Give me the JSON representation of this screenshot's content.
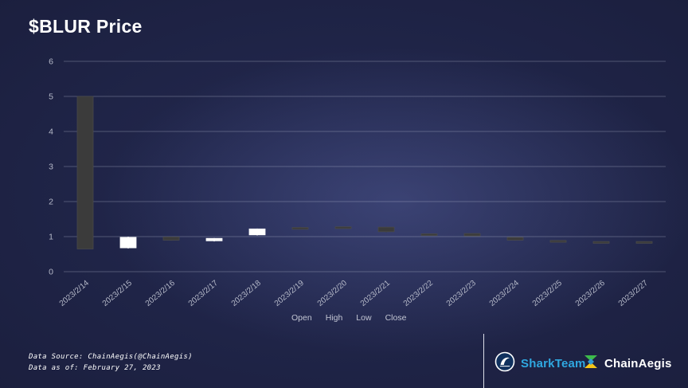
{
  "title": "$BLUR Price",
  "legend": {
    "items": [
      "Open",
      "High",
      "Low",
      "Close"
    ]
  },
  "footer": {
    "line1": "Data Source: ChainAegis(@ChainAegis)",
    "line2": "Data as of: February 27, 2023"
  },
  "branding": {
    "sharkteam_label": "SharkTeam",
    "chainaegis_label": "ChainAegis"
  },
  "colors": {
    "bullish": "#ffffff",
    "bearish": "#3b3b3b",
    "bearish_edge": "#4a4a4a",
    "grid": "rgba(190,196,214,0.32)",
    "axis_text": "#b6bac9",
    "accent_blue": "#2FA8E1"
  },
  "chart_data": {
    "type": "candlestick",
    "title": "$BLUR Price",
    "categories": [
      "2023/2/14",
      "2023/2/15",
      "2023/2/16",
      "2023/2/17",
      "2023/2/18",
      "2023/2/19",
      "2023/2/20",
      "2023/2/21",
      "2023/2/22",
      "2023/2/23",
      "2023/2/24",
      "2023/2/25",
      "2023/2/26",
      "2023/2/27"
    ],
    "series": [
      {
        "name": "$BLUR",
        "ohlc": [
          [
            5.0,
            5.0,
            0.65,
            0.65
          ],
          [
            0.68,
            1.0,
            0.66,
            0.98
          ],
          [
            0.99,
            1.0,
            0.88,
            0.9
          ],
          [
            0.88,
            0.96,
            0.86,
            0.95
          ],
          [
            1.05,
            1.23,
            1.03,
            1.22
          ],
          [
            1.26,
            1.28,
            1.21,
            1.22
          ],
          [
            1.28,
            1.29,
            1.23,
            1.24
          ],
          [
            1.27,
            1.28,
            1.12,
            1.14
          ],
          [
            1.08,
            1.09,
            1.04,
            1.05
          ],
          [
            1.09,
            1.1,
            1.01,
            1.02
          ],
          [
            0.98,
            0.99,
            0.89,
            0.9
          ],
          [
            0.89,
            0.9,
            0.86,
            0.87
          ],
          [
            0.86,
            0.87,
            0.84,
            0.85
          ],
          [
            0.86,
            0.87,
            0.83,
            0.84
          ]
        ]
      }
    ],
    "ylim": [
      0,
      6
    ],
    "yticks": [
      0,
      1,
      2,
      3,
      4,
      5,
      6
    ],
    "grid": true,
    "legend_entries": [
      "Open",
      "High",
      "Low",
      "Close"
    ],
    "legend_position": "bottom"
  }
}
